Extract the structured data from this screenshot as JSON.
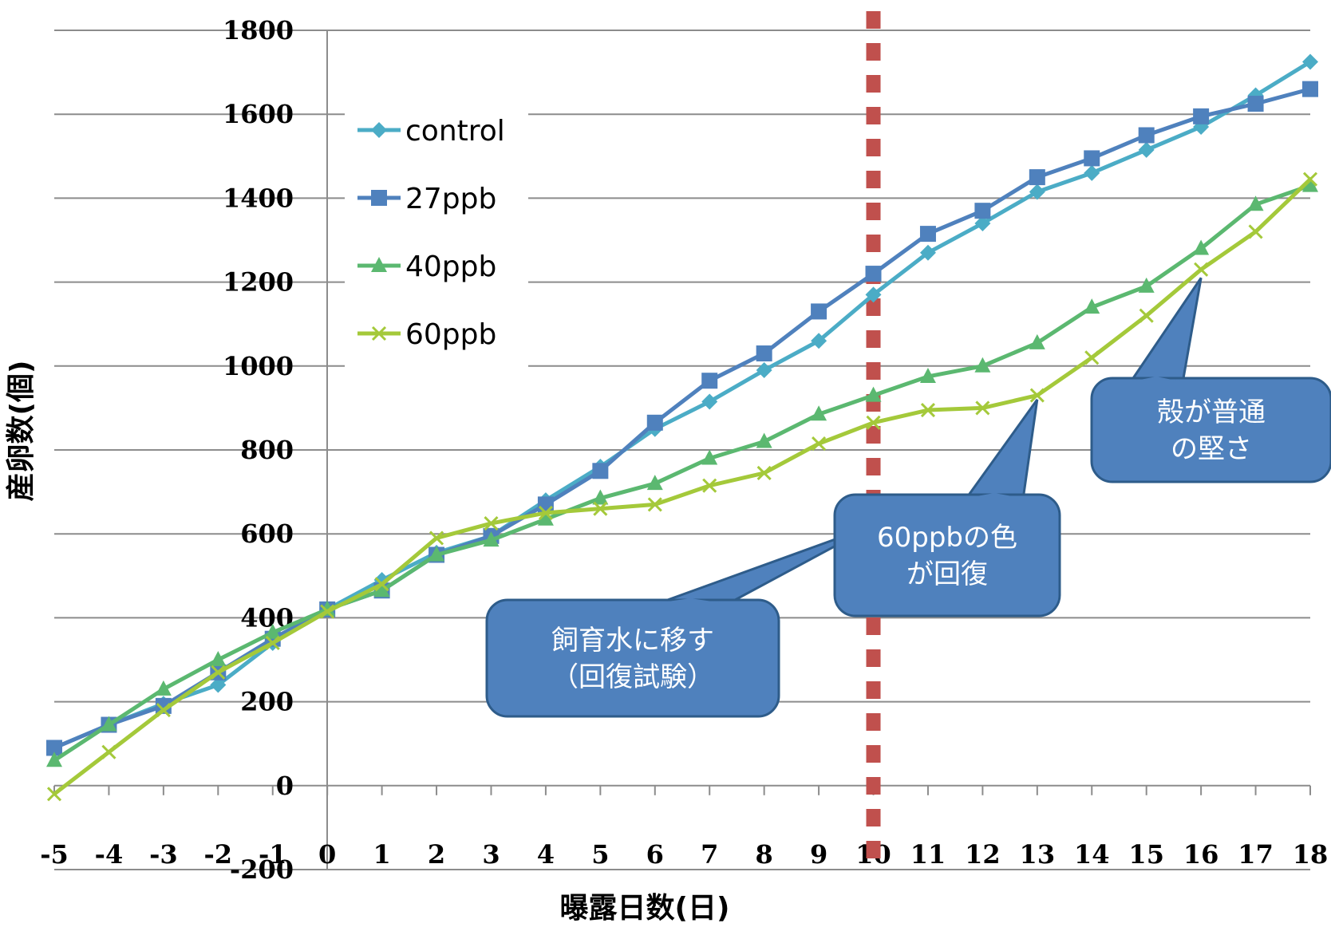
{
  "chart_data": {
    "type": "line",
    "title": "",
    "xlabel": "曝露日数(日)",
    "ylabel": "産卵数(個)",
    "x": [
      -5,
      -4,
      -3,
      -2,
      -1,
      0,
      1,
      2,
      3,
      4,
      5,
      6,
      7,
      8,
      9,
      10,
      11,
      12,
      13,
      14,
      15,
      16,
      17,
      18
    ],
    "xlim": [
      -5,
      18
    ],
    "ylim": [
      -200,
      1800
    ],
    "ytick_step": 200,
    "grid": true,
    "legend": "upper-left",
    "series": [
      {
        "name": "control",
        "color": "#4bacc6",
        "marker": "diamond",
        "values": [
          90,
          145,
          195,
          240,
          340,
          420,
          490,
          555,
          595,
          680,
          760,
          850,
          915,
          990,
          1060,
          1170,
          1270,
          1340,
          1415,
          1460,
          1515,
          1570,
          1645,
          1725
        ]
      },
      {
        "name": "27ppb",
        "color": "#4f81bd",
        "marker": "square",
        "values": [
          90,
          145,
          190,
          270,
          350,
          420,
          465,
          550,
          595,
          670,
          750,
          865,
          965,
          1030,
          1130,
          1220,
          1315,
          1370,
          1450,
          1495,
          1550,
          1595,
          1625,
          1660
        ]
      },
      {
        "name": "40ppb",
        "color": "#5bb870",
        "marker": "triangle",
        "values": [
          60,
          145,
          230,
          300,
          365,
          420,
          465,
          550,
          585,
          635,
          685,
          720,
          780,
          820,
          885,
          930,
          975,
          1000,
          1055,
          1140,
          1190,
          1280,
          1385,
          1430
        ]
      },
      {
        "name": "60ppb",
        "color": "#a4c93a",
        "marker": "x",
        "values": [
          -20,
          80,
          180,
          270,
          340,
          415,
          480,
          590,
          625,
          650,
          660,
          670,
          715,
          745,
          815,
          865,
          895,
          900,
          930,
          1020,
          1120,
          1230,
          1320,
          1445
        ]
      }
    ],
    "reference_line": {
      "x": 10,
      "color": "#c0504d",
      "style": "dashed"
    },
    "annotations": [
      {
        "text_lines": [
          "飼育水に移す",
          "（回復試験）"
        ],
        "pointer_x": 10,
        "pointer_y": 620
      },
      {
        "text_lines": [
          "60ppbの色",
          "が回復"
        ],
        "pointer_x": 13,
        "pointer_y": 920
      },
      {
        "text_lines": [
          "殻が普通",
          "の堅さ"
        ],
        "pointer_x": 16,
        "pointer_y": 1210
      }
    ],
    "callout_color": "#4f81bd"
  }
}
